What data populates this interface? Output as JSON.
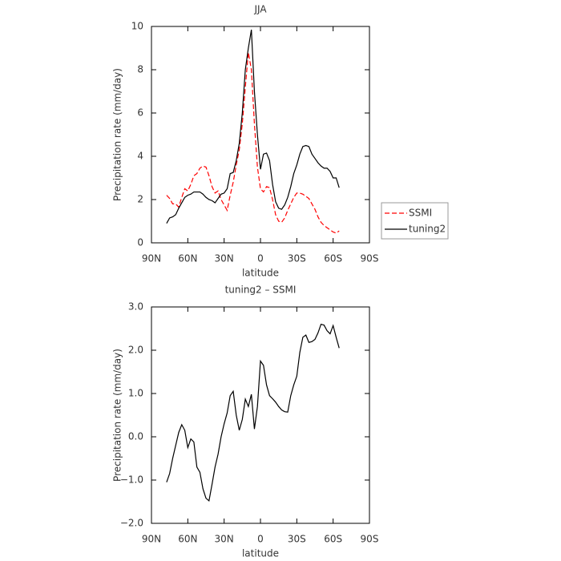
{
  "chart_data": [
    {
      "type": "line",
      "title": "JJA",
      "xlabel": "latitude",
      "ylabel": "Precipitation rate (mm/day)",
      "x": [
        77.5,
        75,
        72.5,
        70,
        67.5,
        65,
        62.5,
        60,
        57.5,
        55,
        52.5,
        50,
        47.5,
        45,
        42.5,
        40,
        37.5,
        35,
        32.5,
        30,
        27.5,
        25,
        22.5,
        20,
        17.5,
        15,
        12.5,
        10,
        7.5,
        5,
        2.5,
        0,
        -2.5,
        -5,
        -7.5,
        -10,
        -12.5,
        -15,
        -17.5,
        -20,
        -22.5,
        -25,
        -27.5,
        -30,
        -32.5,
        -35,
        -37.5,
        -40,
        -42.5,
        -45,
        -47.5,
        -50,
        -52.5,
        -55,
        -57.5,
        -60,
        -62.5,
        -65
      ],
      "series": [
        {
          "name": "SSMI",
          "color": "#ff0000",
          "line_style": "dashed",
          "values": [
            2.2,
            2.05,
            1.8,
            1.8,
            1.65,
            2.1,
            2.5,
            2.4,
            2.7,
            3.1,
            3.2,
            3.45,
            3.55,
            3.5,
            3.1,
            2.6,
            2.3,
            2.4,
            2.0,
            1.75,
            1.5,
            2.2,
            2.8,
            3.6,
            4.3,
            5.5,
            7.2,
            8.8,
            8.0,
            5.5,
            3.5,
            2.5,
            2.35,
            2.6,
            2.55,
            2.0,
            1.3,
            1.0,
            0.95,
            1.15,
            1.5,
            1.8,
            2.1,
            2.3,
            2.3,
            2.25,
            2.15,
            2.05,
            1.8,
            1.55,
            1.2,
            0.95,
            0.8,
            0.7,
            0.6,
            0.5,
            0.45,
            0.55
          ]
        },
        {
          "name": "tuning2",
          "color": "#000000",
          "line_style": "solid",
          "values": [
            0.9,
            1.15,
            1.2,
            1.3,
            1.6,
            1.85,
            2.1,
            2.2,
            2.25,
            2.35,
            2.35,
            2.35,
            2.25,
            2.1,
            2.0,
            1.95,
            1.85,
            2.05,
            2.25,
            2.3,
            2.5,
            3.2,
            3.25,
            3.8,
            4.6,
            6.0,
            8.0,
            9.0,
            9.85,
            7.0,
            5.0,
            3.4,
            4.1,
            4.15,
            3.8,
            2.7,
            1.9,
            1.6,
            1.55,
            1.75,
            2.1,
            2.6,
            3.2,
            3.6,
            4.1,
            4.45,
            4.5,
            4.45,
            4.1,
            3.9,
            3.7,
            3.55,
            3.45,
            3.45,
            3.3,
            3.0,
            3.0,
            2.55
          ]
        }
      ],
      "xlim": [
        90,
        -90
      ],
      "xticks": [
        {
          "value": 90,
          "label": "90N"
        },
        {
          "value": 60,
          "label": "60N"
        },
        {
          "value": 30,
          "label": "30N"
        },
        0,
        {
          "value": -30,
          "label": "30S"
        },
        {
          "value": -60,
          "label": "60S"
        },
        {
          "value": -90,
          "label": "90S"
        }
      ],
      "ylim": [
        0,
        10
      ],
      "yticks": [
        0,
        2,
        4,
        6,
        8,
        10
      ],
      "legend": "right"
    },
    {
      "type": "line",
      "title": "tuning2 – SSMI",
      "xlabel": "latitude",
      "ylabel": "Precipitation rate (mm/day)",
      "x": [
        77.5,
        75,
        72.5,
        70,
        67.5,
        65,
        62.5,
        60,
        57.5,
        55,
        52.5,
        50,
        47.5,
        45,
        42.5,
        40,
        37.5,
        35,
        32.5,
        30,
        27.5,
        25,
        22.5,
        20,
        17.5,
        15,
        12.5,
        10,
        7.5,
        5,
        2.5,
        0,
        -2.5,
        -5,
        -7.5,
        -10,
        -12.5,
        -15,
        -17.5,
        -20,
        -22.5,
        -25,
        -27.5,
        -30,
        -32.5,
        -35,
        -37.5,
        -40,
        -42.5,
        -45,
        -47.5,
        -50,
        -52.5,
        -55,
        -57.5,
        -60,
        -62.5,
        -65
      ],
      "color": "#000000",
      "values": [
        -1.05,
        -0.85,
        -0.5,
        -0.2,
        0.1,
        0.28,
        0.15,
        -0.25,
        -0.05,
        -0.12,
        -0.7,
        -0.82,
        -1.2,
        -1.42,
        -1.48,
        -1.1,
        -0.7,
        -0.4,
        0.0,
        0.3,
        0.55,
        0.95,
        1.05,
        0.5,
        0.15,
        0.4,
        0.87,
        0.7,
        0.98,
        0.18,
        0.7,
        1.75,
        1.65,
        1.2,
        0.95,
        0.88,
        0.8,
        0.7,
        0.62,
        0.58,
        0.57,
        0.95,
        1.2,
        1.4,
        1.95,
        2.3,
        2.35,
        2.18,
        2.2,
        2.25,
        2.4,
        2.6,
        2.58,
        2.45,
        2.38,
        2.57,
        2.3,
        2.05
      ],
      "xlim": [
        90,
        -90
      ],
      "xticks": [
        {
          "value": 90,
          "label": "90N"
        },
        {
          "value": 60,
          "label": "60N"
        },
        {
          "value": 30,
          "label": "30N"
        },
        0,
        {
          "value": -30,
          "label": "30S"
        },
        {
          "value": -60,
          "label": "60S"
        },
        {
          "value": -90,
          "label": "90S"
        }
      ],
      "ylim": [
        -2,
        3
      ],
      "yticks": [
        {
          "value": -2,
          "label": "−2.0"
        },
        {
          "value": -1,
          "label": "−1.0"
        },
        {
          "value": 0,
          "label": "0.0"
        },
        {
          "value": 1,
          "label": "1.0"
        },
        {
          "value": 2,
          "label": "2.0"
        },
        {
          "value": 3,
          "label": "3.0"
        }
      ]
    }
  ]
}
